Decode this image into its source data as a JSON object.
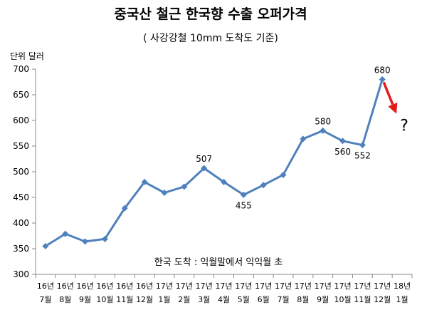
{
  "chart_data": {
    "type": "line",
    "title": "중국산 철근 한국향 수출 오퍼가격",
    "subtitle": "( 사강강철 10mm 도착도 기준)",
    "ylabel": "단위 달러",
    "xlabel": "",
    "ylim": [
      300,
      700
    ],
    "yticks": [
      "700",
      "650",
      "600",
      "550",
      "500",
      "450",
      "400",
      "350",
      "300"
    ],
    "grid": false,
    "categories": [
      [
        "16년",
        "7월"
      ],
      [
        "16년",
        "8월"
      ],
      [
        "16년",
        "9월"
      ],
      [
        "16년",
        "10월"
      ],
      [
        "16년",
        "11월"
      ],
      [
        "16년",
        "12월"
      ],
      [
        "17년",
        "1월"
      ],
      [
        "17년",
        "2월"
      ],
      [
        "17년",
        "3월"
      ],
      [
        "17년",
        "4월"
      ],
      [
        "17년",
        "5월"
      ],
      [
        "17년",
        "6월"
      ],
      [
        "17년",
        "7월"
      ],
      [
        "17년",
        "8월"
      ],
      [
        "17년",
        "9월"
      ],
      [
        "17년",
        "10월"
      ],
      [
        "17년",
        "11월"
      ],
      [
        "17년",
        "12월"
      ],
      [
        "18년",
        "1월"
      ]
    ],
    "series": [
      {
        "values": [
          355,
          379,
          364,
          369,
          429,
          480,
          459,
          471,
          507,
          480,
          455,
          474,
          494,
          564,
          580,
          560,
          552,
          680,
          null
        ],
        "color": "#4F81BD"
      }
    ],
    "data_labels": [
      {
        "index": 8,
        "text": "507",
        "position": "above"
      },
      {
        "index": 10,
        "text": "455",
        "position": "below"
      },
      {
        "index": 14,
        "text": "580",
        "position": "above"
      },
      {
        "index": 15,
        "text": "560",
        "position": "below"
      },
      {
        "index": 16,
        "text": "552",
        "position": "below"
      },
      {
        "index": 17,
        "text": "680",
        "position": "above"
      }
    ],
    "annotations": {
      "note": "한국 도착 : 익월말에서 익익월 초",
      "arrow": {
        "from_index": 17,
        "from_value": 680,
        "to_index": 18,
        "to_value": 602,
        "color": "#E31B1B"
      },
      "question_mark": "?"
    }
  }
}
